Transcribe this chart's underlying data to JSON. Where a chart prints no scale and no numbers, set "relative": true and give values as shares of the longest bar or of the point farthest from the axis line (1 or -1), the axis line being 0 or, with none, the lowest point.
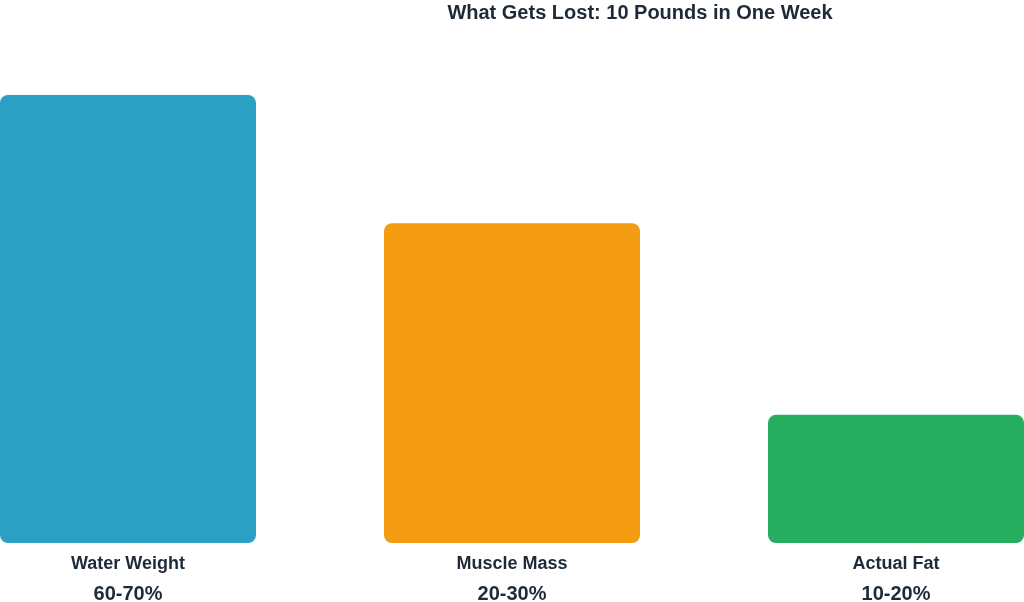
{
  "chart_data": {
    "type": "bar",
    "title": "What Gets Lost: 10 Pounds in One Week",
    "categories": [
      "Water Weight\n60-70%",
      "Muscle Mass\n20-30%",
      "Actual Fat\n10-20%"
    ],
    "values": [
      1,
      0.714,
      0.286
    ],
    "colors": [
      "#2ba0c4",
      "#f39c12",
      "#27ae60"
    ],
    "relative": true
  }
}
